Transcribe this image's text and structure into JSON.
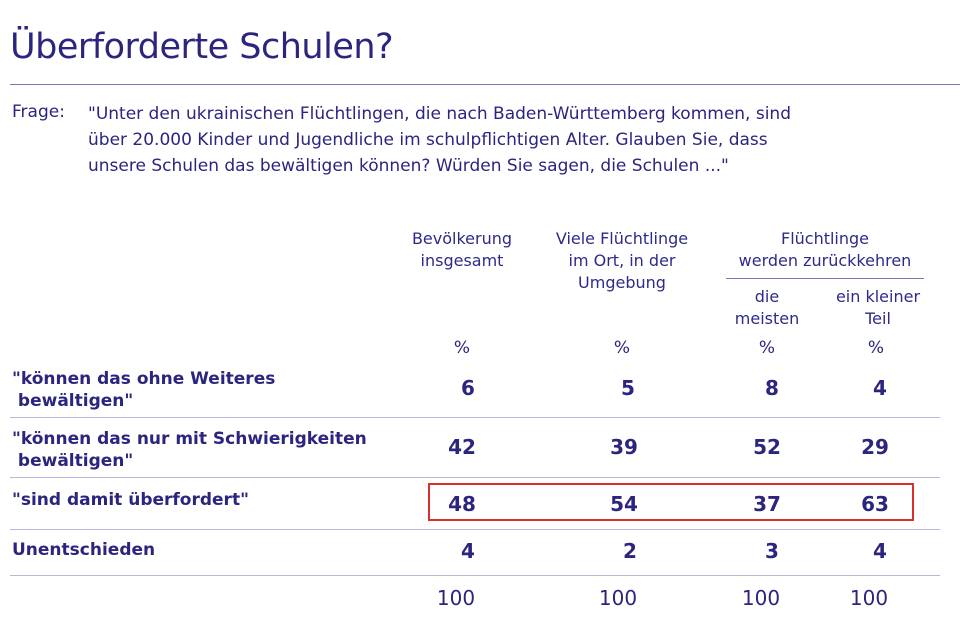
{
  "title": "Überforderte Schulen?",
  "question": {
    "label": "Frage:",
    "lines": [
      "\"Unter den ukrainischen Flüchtlingen, die nach Baden-Württemberg kommen, sind",
      "über 20.000 Kinder und Jugendliche im schulpflichtigen Alter. Glauben Sie, dass",
      "unsere Schulen das bewältigen können? Würden Sie sagen, die Schulen ...\""
    ]
  },
  "columns": {
    "col1": [
      "Bevölkerung",
      "insgesamt"
    ],
    "col2": [
      "Viele Flüchtlinge",
      "im Ort, in der",
      "Umgebung"
    ],
    "group": [
      "Flüchtlinge",
      "werden zurückkehren"
    ],
    "col3": [
      "die",
      "meisten"
    ],
    "col4": [
      "ein kleiner",
      "Teil"
    ],
    "unit": "%"
  },
  "rows": [
    {
      "label": [
        "\"können das ohne Weiteres",
        " bewältigen\""
      ],
      "values": [
        "6",
        "5",
        "8",
        "4"
      ]
    },
    {
      "label": [
        "\"können das nur mit Schwierigkeiten",
        " bewältigen\""
      ],
      "values": [
        "42",
        "39",
        "52",
        "29"
      ]
    },
    {
      "label": [
        "\"sind damit überfordert\""
      ],
      "values": [
        "48",
        "54",
        "37",
        "63"
      ],
      "highlighted": true
    },
    {
      "label": [
        "Unentschieden"
      ],
      "values": [
        "4",
        "2",
        "3",
        "4"
      ]
    }
  ],
  "totals": [
    "100",
    "100",
    "100",
    "100"
  ],
  "colors": {
    "text": "#2b2580",
    "highlight_border": "#d9302c",
    "rule": "#7a74b8"
  }
}
